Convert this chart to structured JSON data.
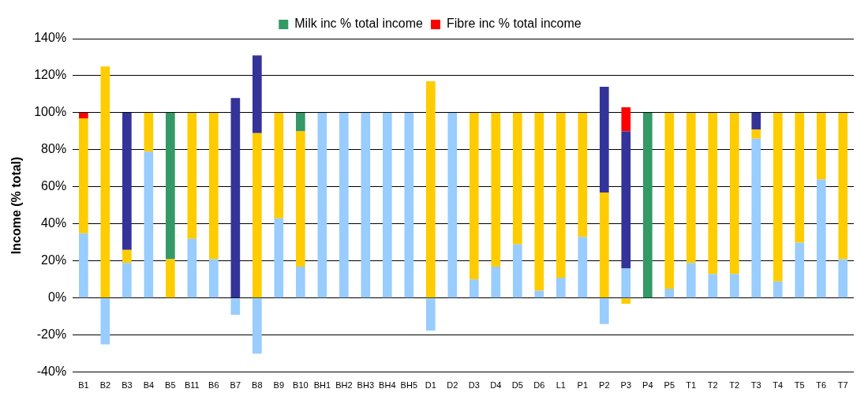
{
  "chart_data": {
    "type": "bar",
    "stacked": true,
    "ylabel": "Income (% total)",
    "categories": [
      "B1",
      "B2",
      "B3",
      "B4",
      "B5",
      "B11",
      "B6",
      "B7",
      "B8",
      "B9",
      "B10",
      "BH1",
      "BH2",
      "BH3",
      "BH4",
      "BH5",
      "D1",
      "D2",
      "D3",
      "D4",
      "D5",
      "D6",
      "L1",
      "P1",
      "P2",
      "P3",
      "P4",
      "P5",
      "T1",
      "T2",
      "T2",
      "T3",
      "T4",
      "T5",
      "T6",
      "T7"
    ],
    "series": [
      {
        "color": "#99ccff",
        "values": [
          35,
          -25,
          19,
          79,
          null,
          32,
          21,
          -9,
          -30,
          43,
          17,
          100,
          100,
          100,
          100,
          100,
          -17.5,
          100,
          10,
          17,
          29,
          4,
          11,
          33,
          -14,
          16,
          null,
          5,
          19,
          13,
          13,
          86,
          9,
          30,
          64,
          21
        ]
      },
      {
        "color": "#ffcc00",
        "values": [
          62,
          125,
          7,
          21,
          21,
          68,
          79,
          null,
          89,
          57,
          73,
          null,
          null,
          null,
          null,
          null,
          117,
          null,
          90,
          83,
          71,
          96,
          89,
          67,
          57,
          -3,
          null,
          95,
          81,
          87,
          87,
          5,
          91,
          70,
          36,
          79
        ]
      },
      {
        "color": "#333399",
        "values": [
          null,
          null,
          74,
          null,
          null,
          null,
          null,
          108,
          42,
          null,
          null,
          null,
          null,
          null,
          null,
          null,
          null,
          null,
          null,
          null,
          null,
          null,
          null,
          null,
          57,
          74,
          null,
          null,
          null,
          null,
          null,
          9,
          null,
          null,
          null,
          null
        ]
      },
      {
        "name": "Milk inc % total income",
        "color": "#339966",
        "values": [
          null,
          null,
          null,
          null,
          79,
          null,
          null,
          null,
          null,
          null,
          10,
          null,
          null,
          null,
          null,
          null,
          null,
          null,
          null,
          null,
          null,
          null,
          null,
          null,
          null,
          null,
          100,
          null,
          null,
          null,
          null,
          null,
          null,
          null,
          null,
          null
        ]
      },
      {
        "name": "Fibre inc % total income",
        "color": "#ff0000",
        "values": [
          3,
          null,
          null,
          null,
          null,
          null,
          null,
          null,
          null,
          null,
          null,
          null,
          null,
          null,
          null,
          null,
          null,
          null,
          null,
          null,
          null,
          null,
          null,
          null,
          null,
          13,
          null,
          null,
          null,
          null,
          null,
          null,
          null,
          null,
          null,
          null
        ]
      }
    ],
    "ylim": [
      -40,
      140
    ],
    "yticks": [
      {
        "value": -40,
        "label": "-40%"
      },
      {
        "value": -20,
        "label": "-20%"
      },
      {
        "value": 0,
        "label": "0%"
      },
      {
        "value": 20,
        "label": "20%"
      },
      {
        "value": 40,
        "label": "40%"
      },
      {
        "value": 60,
        "label": "60%"
      },
      {
        "value": 80,
        "label": "80%"
      },
      {
        "value": 100,
        "label": "100%"
      },
      {
        "value": 120,
        "label": "120%"
      },
      {
        "value": 140,
        "label": "140%"
      }
    ],
    "grid": "y",
    "legend": "top"
  }
}
